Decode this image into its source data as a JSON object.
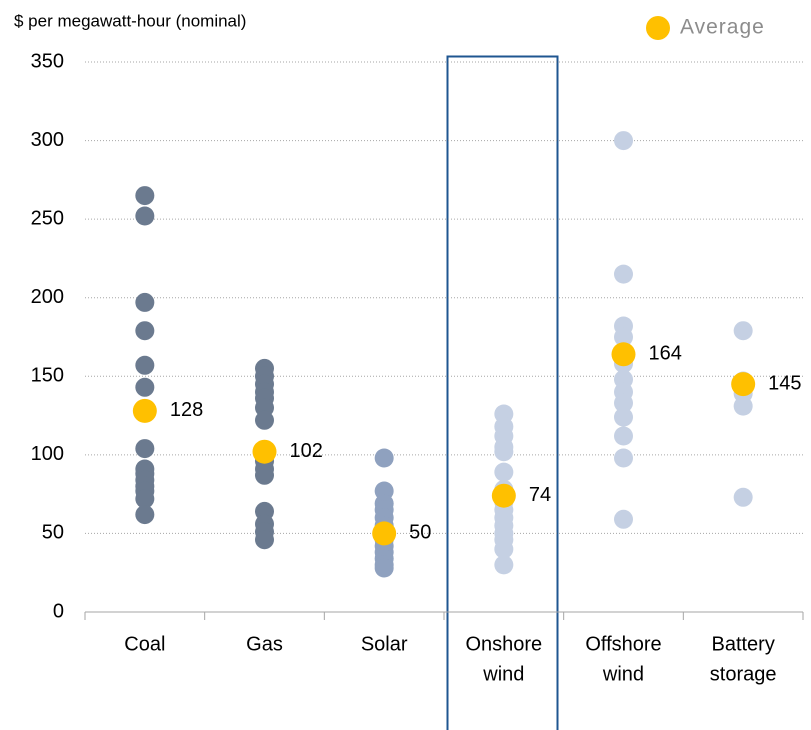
{
  "chart_data": {
    "type": "strip",
    "y_label": "$ per megawatt-hour (nominal)",
    "categories": [
      [
        "Coal"
      ],
      [
        "Gas"
      ],
      [
        "Solar"
      ],
      [
        "Onshore",
        "wind"
      ],
      [
        "Offshore",
        "wind"
      ],
      [
        "Battery",
        "storage"
      ]
    ],
    "colors": [
      "#6b7a8f",
      "#6b7a8f",
      "#8fa1bf",
      "#c5d0e3",
      "#c5d0e3",
      "#c5d0e3"
    ],
    "points": [
      [
        265,
        252,
        197,
        179,
        157,
        143,
        104,
        91,
        88,
        84,
        80,
        77,
        72,
        62
      ],
      [
        155,
        150,
        145,
        140,
        136,
        130,
        122,
        103,
        100,
        96,
        91,
        87,
        64,
        56,
        51,
        46
      ],
      [
        98,
        77,
        69,
        65,
        60,
        55,
        50,
        46,
        42,
        38,
        34,
        30,
        28
      ],
      [
        126,
        118,
        112,
        105,
        102,
        89,
        78,
        74,
        70,
        65,
        60,
        55,
        50,
        46,
        40,
        30
      ],
      [
        300,
        215,
        182,
        175,
        166,
        158,
        148,
        140,
        133,
        124,
        112,
        98,
        59
      ],
      [
        179,
        147,
        139,
        131,
        73
      ]
    ],
    "average": {
      "name": "Average",
      "color": "#ffc000",
      "values": [
        128,
        102,
        50,
        74,
        164,
        145
      ]
    },
    "ylim": [
      0,
      350
    ],
    "yticks": [
      0,
      50,
      100,
      150,
      200,
      250,
      300,
      350
    ],
    "grid": true
  }
}
